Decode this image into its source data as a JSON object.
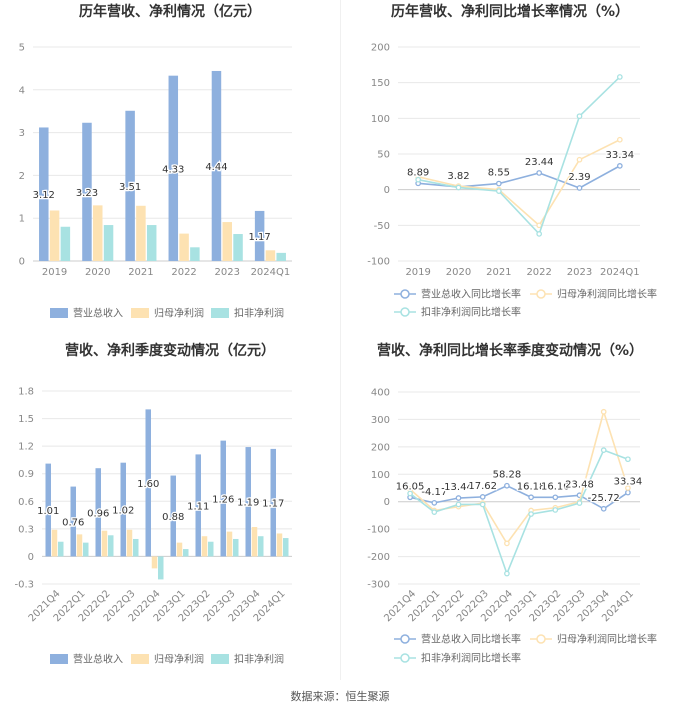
{
  "source": "数据来源：恒生聚源",
  "colors": {
    "blue": "#8eb0de",
    "orange": "#fde2b2",
    "cyan": "#a8e2e2",
    "grid": "#e8e8e8",
    "axis": "#cccccc",
    "tick": "#888888",
    "label": "#333333"
  },
  "chart_data": [
    {
      "type": "bar",
      "title": "历年营收、净利情况（亿元）",
      "categories": [
        "2019",
        "2020",
        "2021",
        "2022",
        "2023",
        "2024Q1"
      ],
      "ylim": [
        0,
        5
      ],
      "yticks": [
        0,
        1,
        2,
        3,
        4,
        5
      ],
      "legend": "bottom",
      "series": [
        {
          "name": "营业总收入",
          "values": [
            3.12,
            3.23,
            3.51,
            4.33,
            4.44,
            1.17
          ],
          "labels": [
            "3.12",
            "3.23",
            "3.51",
            "4.33",
            "4.44",
            "1.17"
          ]
        },
        {
          "name": "归母净利润",
          "values": [
            1.18,
            1.3,
            1.29,
            0.64,
            0.91,
            0.25
          ]
        },
        {
          "name": "扣非净利润",
          "values": [
            0.8,
            0.84,
            0.84,
            0.32,
            0.63,
            0.19
          ]
        }
      ]
    },
    {
      "type": "line",
      "title": "历年营收、净利同比增长率情况（%）",
      "categories": [
        "2019",
        "2020",
        "2021",
        "2022",
        "2023",
        "2024Q1"
      ],
      "ylim": [
        -100,
        200
      ],
      "yticks": [
        -100,
        -50,
        0,
        50,
        100,
        150,
        200
      ],
      "legend": "bottom",
      "series": [
        {
          "name": "营业总收入同比增长率",
          "values": [
            8.89,
            3.82,
            8.55,
            23.44,
            2.39,
            33.34
          ],
          "labels": [
            "8.89",
            "3.82",
            "8.55",
            "23.44",
            "2.39",
            "33.34"
          ]
        },
        {
          "name": "归母净利润同比增长率",
          "values": [
            18,
            5,
            0,
            -50,
            42,
            70
          ]
        },
        {
          "name": "扣非净利润同比增长率",
          "values": [
            14,
            3,
            -2,
            -62,
            103,
            158
          ]
        }
      ]
    },
    {
      "type": "bar",
      "title": "营收、净利季度变动情况（亿元）",
      "categories": [
        "2021Q4",
        "2022Q1",
        "2022Q2",
        "2022Q3",
        "2022Q4",
        "2023Q1",
        "2023Q2",
        "2023Q3",
        "2023Q4",
        "2024Q1"
      ],
      "ylim": [
        -0.3,
        1.8
      ],
      "yticks": [
        -0.3,
        0,
        0.3,
        0.6,
        0.9,
        1.2,
        1.5,
        1.8
      ],
      "legend": "bottom",
      "series": [
        {
          "name": "营业总收入",
          "values": [
            1.01,
            0.76,
            0.96,
            1.02,
            1.6,
            0.88,
            1.11,
            1.26,
            1.19,
            1.17
          ],
          "labels": [
            "1.01",
            "0.76",
            "0.96",
            "1.02",
            "1.60",
            "0.88",
            "1.11",
            "1.26",
            "1.19",
            "1.17"
          ]
        },
        {
          "name": "归母净利润",
          "values": [
            0.29,
            0.24,
            0.28,
            0.29,
            -0.13,
            0.15,
            0.22,
            0.27,
            0.32,
            0.25
          ]
        },
        {
          "name": "扣非净利润",
          "values": [
            0.16,
            0.15,
            0.23,
            0.19,
            -0.25,
            0.08,
            0.16,
            0.19,
            0.22,
            0.2
          ]
        }
      ]
    },
    {
      "type": "line",
      "title": "营收、净利同比增长率季度变动情况（%）",
      "categories": [
        "2021Q4",
        "2022Q1",
        "2022Q2",
        "2022Q3",
        "2022Q4",
        "2023Q1",
        "2023Q2",
        "2023Q3",
        "2023Q4",
        "2024Q1"
      ],
      "ylim": [
        -300,
        400
      ],
      "yticks": [
        -300,
        -200,
        -100,
        0,
        100,
        200,
        300,
        400
      ],
      "legend": "bottom",
      "series": [
        {
          "name": "营业总收入同比增长率",
          "values": [
            16.05,
            -4.17,
            13.44,
            17.62,
            58.28,
            16.18,
            16.1,
            23.48,
            -25.72,
            33.34
          ],
          "labels": [
            "16.05",
            "-4.17",
            "13.44",
            "17.62",
            "58.28",
            "16.18",
            "16.10",
            "23.48",
            "-25.72",
            "33.34"
          ]
        },
        {
          "name": "归母净利润同比增长率",
          "values": [
            45,
            -32,
            -18,
            -5,
            -152,
            -32,
            -22,
            0,
            328,
            50
          ]
        },
        {
          "name": "扣非净利润同比增长率",
          "values": [
            30,
            -38,
            -10,
            -10,
            -262,
            -45,
            -30,
            -5,
            188,
            155
          ]
        }
      ]
    }
  ]
}
